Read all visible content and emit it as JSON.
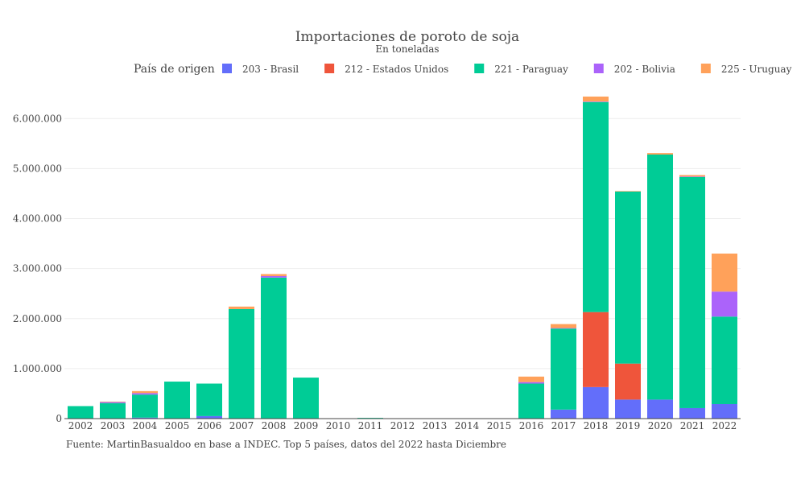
{
  "chart_data": {
    "type": "bar",
    "stacked": true,
    "title": "Importaciones de poroto de soja",
    "subtitle": "En toneladas",
    "legend_title": "País de origen",
    "legend_position": "top",
    "source": "Fuente: MartinBasualdoo en base a INDEC. Top 5 países, datos del 2022 hasta Diciembre",
    "categories": [
      "2002",
      "2003",
      "2004",
      "2005",
      "2006",
      "2007",
      "2008",
      "2009",
      "2010",
      "2011",
      "2012",
      "2013",
      "2014",
      "2015",
      "2016",
      "2017",
      "2018",
      "2019",
      "2020",
      "2021",
      "2022"
    ],
    "y_tick_labels": [
      "0",
      "1.000.000",
      "2.000.000",
      "3.000.000",
      "4.000.000",
      "5.000.000",
      "6.000.000"
    ],
    "y_tick_values": [
      0,
      1000000,
      2000000,
      3000000,
      4000000,
      5000000,
      6000000
    ],
    "ylim": [
      0,
      6600000
    ],
    "grid": true,
    "series": [
      {
        "name": "203 - Brasil",
        "color": "#636efa",
        "values": [
          0,
          0,
          20000,
          0,
          50000,
          0,
          0,
          0,
          0,
          0,
          0,
          0,
          0,
          0,
          0,
          180000,
          630000,
          380000,
          380000,
          210000,
          290000
        ]
      },
      {
        "name": "212 - Estados Unidos",
        "color": "#ef553b",
        "values": [
          0,
          0,
          0,
          0,
          0,
          0,
          0,
          0,
          0,
          0,
          0,
          0,
          0,
          0,
          0,
          0,
          1500000,
          720000,
          0,
          0,
          0
        ]
      },
      {
        "name": "221 - Paraguay",
        "color": "#00cc96",
        "values": [
          250000,
          310000,
          460000,
          740000,
          650000,
          2190000,
          2820000,
          820000,
          5000,
          15000,
          0,
          0,
          0,
          0,
          700000,
          1620000,
          4200000,
          3440000,
          4900000,
          4620000,
          1750000
        ]
      },
      {
        "name": "202 - Bolivia",
        "color": "#ab63fa",
        "values": [
          0,
          20000,
          30000,
          0,
          0,
          0,
          30000,
          0,
          0,
          0,
          0,
          0,
          0,
          0,
          30000,
          10000,
          10000,
          0,
          0,
          10000,
          500000
        ]
      },
      {
        "name": "225 - Uruguay",
        "color": "#ffa15a",
        "values": [
          0,
          10000,
          40000,
          0,
          0,
          50000,
          40000,
          0,
          0,
          0,
          0,
          0,
          0,
          0,
          110000,
          80000,
          100000,
          10000,
          30000,
          30000,
          760000
        ]
      }
    ]
  }
}
